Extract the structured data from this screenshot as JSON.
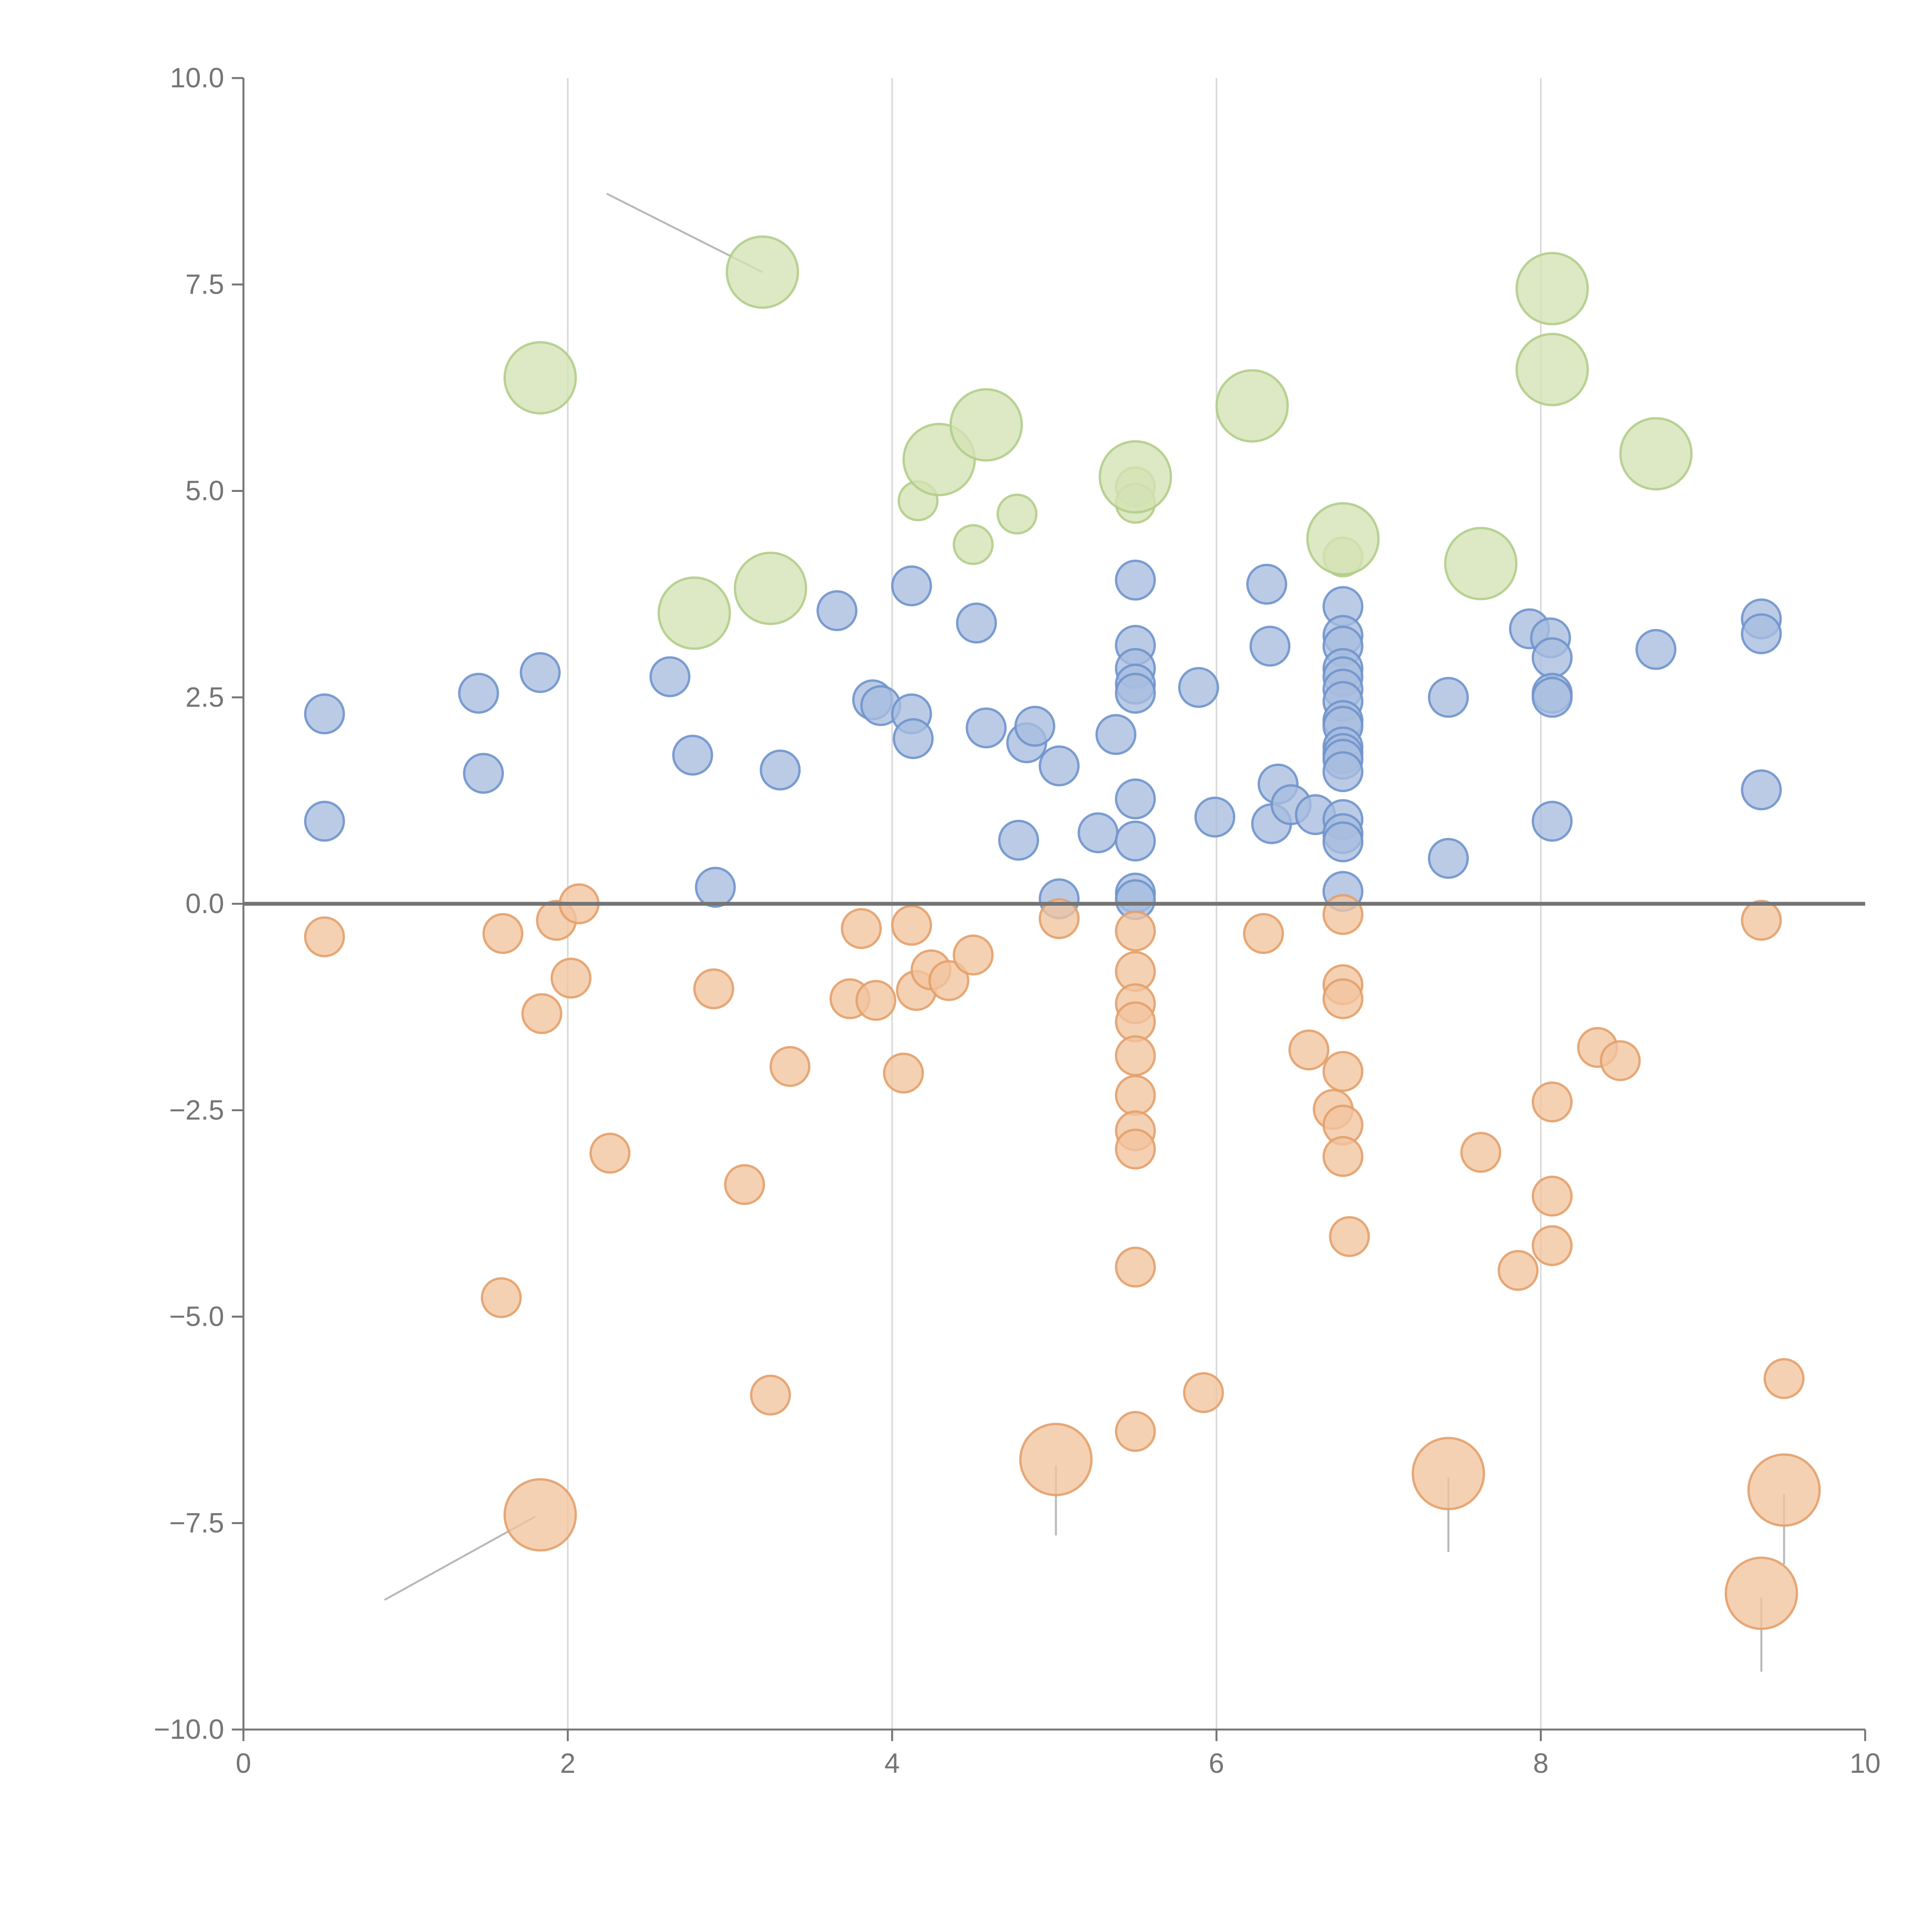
{
  "colors": {
    "blue_fill": "#a8bddf",
    "blue_stroke": "#6f94cc",
    "orange_fill": "#f2c49f",
    "orange_stroke": "#e3a06a",
    "green_fill": "#d3e3b5",
    "green_stroke": "#b2cd8a",
    "axis": "#757575",
    "grid": "#d8d8d8"
  },
  "chart_data": {
    "type": "scatter",
    "title": "",
    "xlabel": "",
    "ylabel": "",
    "xlim": [
      0,
      10
    ],
    "ylim": [
      -10,
      10
    ],
    "x_ticks": [
      0,
      2,
      4,
      6,
      8,
      10
    ],
    "x_tick_labels": [
      "0",
      "2",
      "4",
      "6",
      "8",
      "10"
    ],
    "y_ticks": [
      10,
      7.5,
      5,
      2.5,
      0,
      -2.5,
      -5,
      -7.5,
      -10
    ],
    "y_tick_labels": [
      "10.0",
      "7.5",
      "5.0",
      "2.5",
      "0.0",
      "−2.5",
      "−5.0",
      "−7.5",
      "−10.0"
    ],
    "vertical_gridlines_at": [
      2,
      4,
      6,
      8
    ],
    "reference_line_y": 0,
    "series": [
      {
        "name": "blue",
        "color": "#a8bddf",
        "size": "small",
        "points": [
          [
            0.5,
            2.3
          ],
          [
            0.5,
            1.0
          ],
          [
            1.45,
            2.55
          ],
          [
            1.48,
            1.58
          ],
          [
            1.83,
            2.8
          ],
          [
            2.63,
            2.75
          ],
          [
            2.77,
            1.8
          ],
          [
            2.91,
            0.2
          ],
          [
            3.31,
            1.62
          ],
          [
            3.66,
            3.55
          ],
          [
            3.88,
            2.47
          ],
          [
            3.93,
            2.4
          ],
          [
            4.12,
            3.85
          ],
          [
            4.12,
            2.3
          ],
          [
            4.13,
            2.0
          ],
          [
            4.52,
            3.4
          ],
          [
            4.58,
            2.13
          ],
          [
            4.78,
            0.77
          ],
          [
            4.83,
            1.95
          ],
          [
            4.88,
            2.15
          ],
          [
            5.03,
            1.67
          ],
          [
            5.03,
            0.06
          ],
          [
            5.27,
            0.86
          ],
          [
            5.38,
            2.05
          ],
          [
            5.5,
            3.92
          ],
          [
            5.5,
            3.13
          ],
          [
            5.5,
            2.85
          ],
          [
            5.5,
            2.66
          ],
          [
            5.5,
            2.55
          ],
          [
            5.5,
            1.27
          ],
          [
            5.5,
            0.76
          ],
          [
            5.5,
            0.13
          ],
          [
            5.5,
            0.05
          ],
          [
            5.89,
            2.62
          ],
          [
            5.99,
            1.05
          ],
          [
            6.31,
            3.87
          ],
          [
            6.33,
            3.12
          ],
          [
            6.34,
            0.97
          ],
          [
            6.38,
            1.45
          ],
          [
            6.46,
            1.2
          ],
          [
            6.61,
            1.08
          ],
          [
            6.78,
            3.6
          ],
          [
            6.78,
            3.25
          ],
          [
            6.78,
            3.12
          ],
          [
            6.78,
            2.85
          ],
          [
            6.78,
            2.75
          ],
          [
            6.78,
            2.6
          ],
          [
            6.78,
            2.45
          ],
          [
            6.78,
            2.22
          ],
          [
            6.78,
            2.15
          ],
          [
            6.78,
            1.9
          ],
          [
            6.78,
            1.82
          ],
          [
            6.78,
            1.75
          ],
          [
            6.78,
            1.6
          ],
          [
            6.78,
            1.02
          ],
          [
            6.78,
            0.85
          ],
          [
            6.78,
            0.75
          ],
          [
            6.78,
            0.15
          ],
          [
            7.43,
            2.5
          ],
          [
            7.43,
            0.55
          ],
          [
            7.93,
            3.33
          ],
          [
            8.06,
            3.22
          ],
          [
            8.07,
            2.98
          ],
          [
            8.07,
            2.55
          ],
          [
            8.07,
            2.5
          ],
          [
            8.07,
            1.0
          ],
          [
            8.71,
            3.08
          ],
          [
            9.36,
            3.45
          ],
          [
            9.36,
            3.27
          ],
          [
            9.36,
            1.38
          ]
        ]
      },
      {
        "name": "orange",
        "color": "#f2c49f",
        "size": "small",
        "points": [
          [
            0.5,
            -0.4
          ],
          [
            1.6,
            -0.36
          ],
          [
            1.93,
            -0.2
          ],
          [
            2.07,
            0.0
          ],
          [
            2.02,
            -0.9
          ],
          [
            1.84,
            -1.33
          ],
          [
            2.26,
            -3.02
          ],
          [
            1.59,
            -4.77
          ],
          [
            2.9,
            -1.03
          ],
          [
            3.09,
            -3.4
          ],
          [
            3.37,
            -1.97
          ],
          [
            3.25,
            -5.95
          ],
          [
            3.74,
            -1.15
          ],
          [
            3.81,
            -0.3
          ],
          [
            3.9,
            -1.17
          ],
          [
            4.07,
            -2.05
          ],
          [
            4.12,
            -0.26
          ],
          [
            4.15,
            -1.05
          ],
          [
            4.24,
            -0.8
          ],
          [
            4.35,
            -0.93
          ],
          [
            4.5,
            -0.62
          ],
          [
            5.03,
            -0.18
          ],
          [
            5.5,
            -0.33
          ],
          [
            5.5,
            -0.82
          ],
          [
            5.5,
            -1.21
          ],
          [
            5.5,
            -1.43
          ],
          [
            5.5,
            -1.84
          ],
          [
            5.5,
            -2.32
          ],
          [
            5.5,
            -2.75
          ],
          [
            5.5,
            -2.97
          ],
          [
            5.5,
            -4.4
          ],
          [
            5.5,
            -6.39
          ],
          [
            5.92,
            -5.92
          ],
          [
            6.29,
            -0.36
          ],
          [
            6.57,
            -1.77
          ],
          [
            6.72,
            -2.49
          ],
          [
            6.78,
            -0.13
          ],
          [
            6.78,
            -0.98
          ],
          [
            6.78,
            -1.15
          ],
          [
            6.78,
            -2.03
          ],
          [
            6.78,
            -2.68
          ],
          [
            6.78,
            -3.06
          ],
          [
            6.82,
            -4.03
          ],
          [
            7.63,
            -3.01
          ],
          [
            7.86,
            -4.44
          ],
          [
            8.07,
            -2.4
          ],
          [
            8.07,
            -3.54
          ],
          [
            8.07,
            -4.14
          ],
          [
            8.35,
            -1.74
          ],
          [
            8.49,
            -1.9
          ],
          [
            9.36,
            -0.2
          ],
          [
            9.5,
            -5.75
          ]
        ]
      },
      {
        "name": "green",
        "color": "#d3e3b5",
        "size": "small",
        "points": [
          [
            4.16,
            4.88
          ],
          [
            4.5,
            4.35
          ],
          [
            4.77,
            4.72
          ],
          [
            5.5,
            5.05
          ],
          [
            5.5,
            4.85
          ],
          [
            6.78,
            4.2
          ]
        ]
      },
      {
        "name": "green-large",
        "color": "#d3e3b5",
        "size": "large",
        "points": [
          [
            1.83,
            6.37
          ],
          [
            2.78,
            3.52
          ],
          [
            3.2,
            7.65
          ],
          [
            3.25,
            3.82
          ],
          [
            4.29,
            5.38
          ],
          [
            4.58,
            5.8
          ],
          [
            5.5,
            5.17
          ],
          [
            6.22,
            6.03
          ],
          [
            6.78,
            4.42
          ],
          [
            7.63,
            4.12
          ],
          [
            8.07,
            7.45
          ],
          [
            8.07,
            6.47
          ],
          [
            8.71,
            5.45
          ]
        ]
      },
      {
        "name": "orange-large",
        "color": "#f2c49f",
        "size": "large",
        "points": [
          [
            1.83,
            -7.4
          ],
          [
            5.01,
            -6.73
          ],
          [
            7.43,
            -6.9
          ],
          [
            9.36,
            -8.35
          ],
          [
            9.5,
            -7.1
          ]
        ]
      }
    ],
    "leader_lines": [
      {
        "from": [
          2.24,
          8.6
        ],
        "to": [
          3.2,
          7.65
        ]
      },
      {
        "from": [
          0.87,
          -8.43
        ],
        "to": [
          1.8,
          -7.42
        ]
      },
      {
        "from": [
          5.01,
          -7.65
        ],
        "to": [
          5.01,
          -6.8
        ]
      },
      {
        "from": [
          7.43,
          -7.85
        ],
        "to": [
          7.43,
          -6.95
        ]
      },
      {
        "from": [
          9.36,
          -9.3
        ],
        "to": [
          9.36,
          -8.4
        ]
      },
      {
        "from": [
          9.5,
          -8.0
        ],
        "to": [
          9.5,
          -7.15
        ]
      }
    ]
  }
}
